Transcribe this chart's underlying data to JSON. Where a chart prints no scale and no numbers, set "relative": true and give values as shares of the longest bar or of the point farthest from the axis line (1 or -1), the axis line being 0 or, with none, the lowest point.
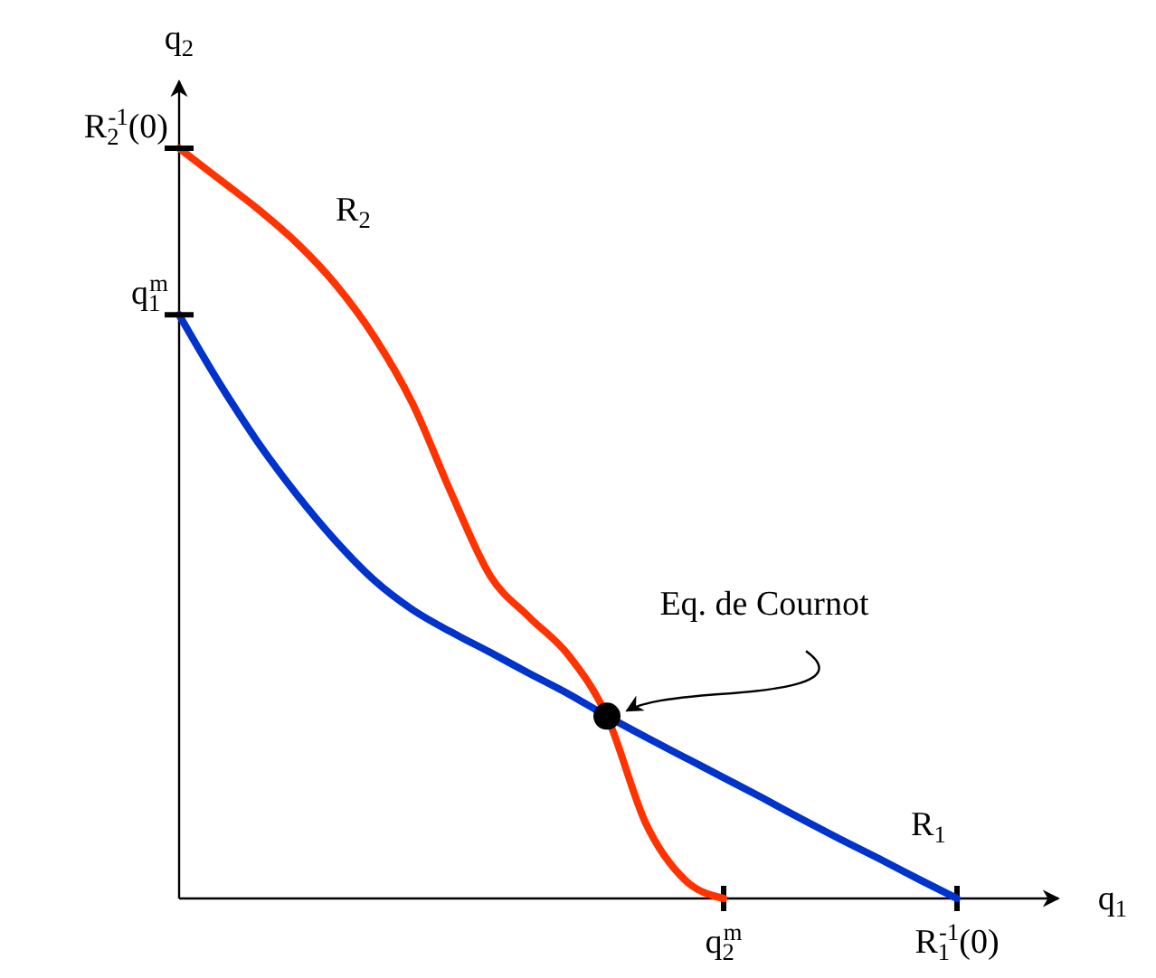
{
  "chart_data": {
    "type": "line",
    "relative": true,
    "xlabel": "q$_{1}$",
    "ylabel": "q$_{2}$",
    "categories": [
      null,
      null,
      null,
      null,
      null,
      null,
      null,
      null,
      null,
      null,
      null,
      null,
      null,
      null,
      "q$_{2}$$^{m}$",
      null,
      null,
      null,
      null,
      null,
      "R$_{1}$$^{-1}$(0)"
    ],
    "series": [
      {
        "name": "R$_{1}$",
        "color": "#0033cc",
        "values": [
          0.778,
          0.69,
          0.61,
          0.54,
          0.478,
          0.425,
          0.385,
          0.355,
          0.328,
          0.3,
          0.273,
          0.243,
          0.215,
          0.188,
          0.161,
          0.134,
          0.106,
          0.079,
          0.053,
          0.026,
          0
        ]
      },
      {
        "name": "R$_{2}$",
        "color": "#ff3300",
        "values": [
          1,
          0.96,
          0.92,
          0.875,
          0.82,
          0.75,
          0.66,
          0.54,
          0.43,
          0.375,
          0.325,
          0.243,
          0.1,
          0.025,
          0,
          null,
          null,
          null,
          null,
          null,
          null
        ]
      },
      {
        "type": "scatter",
        "marker": "circle",
        "color": "#000000",
        "values": [
          null,
          null,
          null,
          null,
          null,
          null,
          null,
          null,
          null,
          null,
          null,
          0.243,
          null,
          null,
          null,
          null,
          null,
          null,
          null,
          null,
          null
        ]
      }
    ],
    "annotations": [
      "Eq. de Cournot",
      "q$_{1}$$^{m}$",
      "R$_{2}$$^{-1}$(0)"
    ],
    "legend": false
  }
}
